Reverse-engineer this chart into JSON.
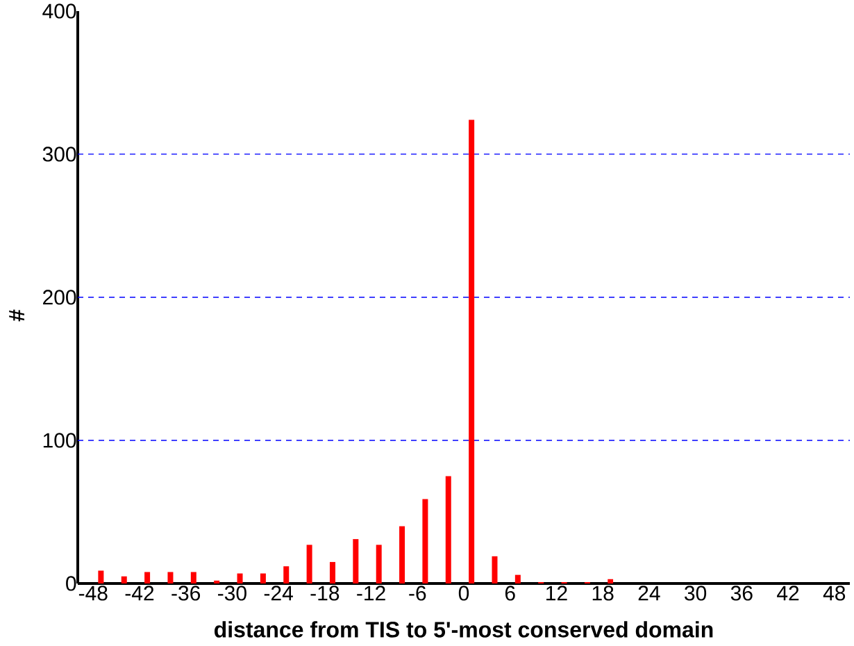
{
  "chart_data": {
    "type": "bar",
    "xlabel": "distance from TIS to 5'-most conserved domain",
    "ylabel": "#",
    "x": [
      -47,
      -44,
      -41,
      -38,
      -35,
      -32,
      -29,
      -26,
      -23,
      -20,
      -17,
      -14,
      -11,
      -8,
      -5,
      -2,
      1,
      4,
      7,
      10,
      13,
      16,
      19
    ],
    "values": [
      9,
      5,
      8,
      8,
      8,
      2,
      7,
      7,
      12,
      27,
      15,
      31,
      27,
      40,
      59,
      75,
      324,
      19,
      6,
      1,
      1,
      1,
      3
    ],
    "color": "#ff0000",
    "xlim": [
      -50,
      50
    ],
    "xticks": [
      -48,
      -42,
      -36,
      -30,
      -24,
      -18,
      -12,
      -6,
      0,
      6,
      12,
      18,
      24,
      30,
      36,
      42,
      48
    ],
    "ylim": [
      0,
      400
    ],
    "yticks": [
      0,
      100,
      200,
      300,
      400
    ],
    "ref_lines": [
      {
        "axis": "y",
        "value": 100,
        "color": "#0000ff",
        "line_style": "dashed"
      },
      {
        "axis": "y",
        "value": 200,
        "color": "#0000ff",
        "line_style": "dashed"
      },
      {
        "axis": "y",
        "value": 300,
        "color": "#0000ff",
        "line_style": "dashed"
      }
    ]
  }
}
